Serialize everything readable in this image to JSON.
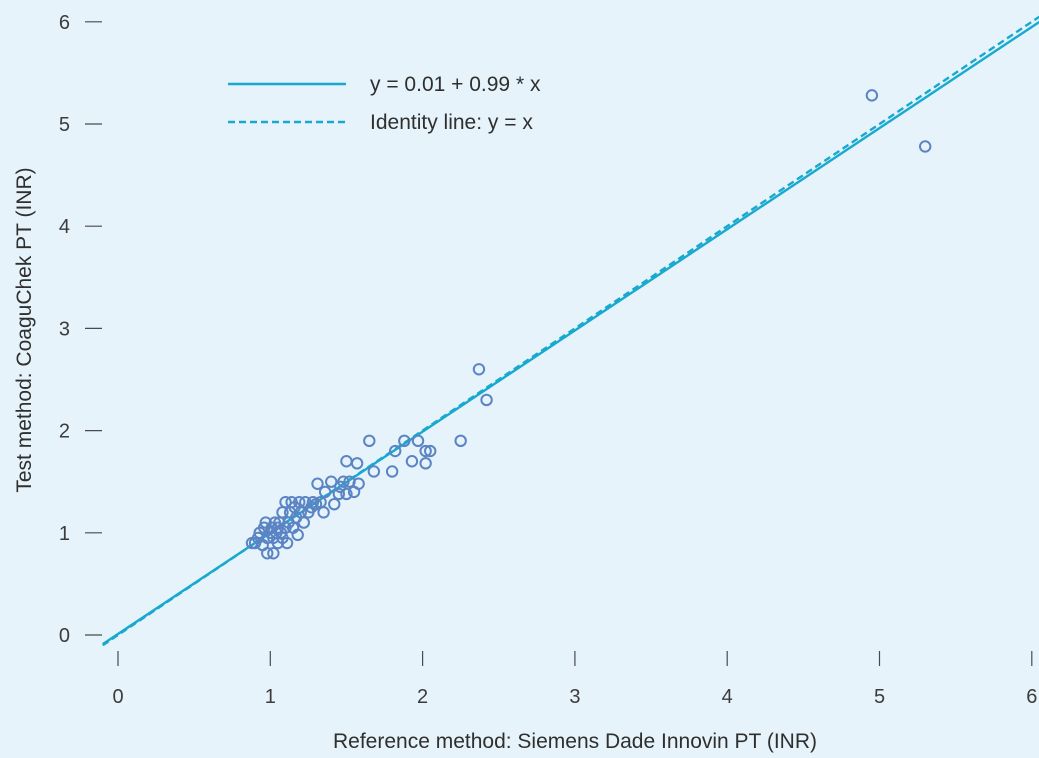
{
  "chart_data": {
    "type": "scatter",
    "title": "",
    "xlabel": "Reference method: Siemens Dade Innovin PT (INR)",
    "ylabel": "Test method: CoaguChek PT (INR)",
    "xlim": [
      -0.1,
      6.05
    ],
    "ylim": [
      -0.1,
      6.1
    ],
    "xticks": [
      "0",
      "1",
      "2",
      "3",
      "4",
      "5",
      "6"
    ],
    "yticks": [
      "0",
      "1",
      "2",
      "3",
      "4",
      "5",
      "6"
    ],
    "grid": false,
    "legend_position": "top-left",
    "colors": {
      "points": "#5b84c4",
      "lines": "#17a9cf",
      "background": "#e6f3fa"
    },
    "series": [
      {
        "name": "",
        "kind": "points",
        "points": [
          [
            0.88,
            0.9
          ],
          [
            0.9,
            0.9
          ],
          [
            0.92,
            0.95
          ],
          [
            0.93,
            1.0
          ],
          [
            0.95,
            0.88
          ],
          [
            0.96,
            1.05
          ],
          [
            0.97,
            1.1
          ],
          [
            0.98,
            0.95
          ],
          [
            0.98,
            0.8
          ],
          [
            1.0,
            1.0
          ],
          [
            1.01,
            1.05
          ],
          [
            1.02,
            0.8
          ],
          [
            1.02,
            0.95
          ],
          [
            1.03,
            1.1
          ],
          [
            1.04,
            1.0
          ],
          [
            1.05,
            0.9
          ],
          [
            1.05,
            1.05
          ],
          [
            1.06,
            1.1
          ],
          [
            1.07,
            1.0
          ],
          [
            1.08,
            1.2
          ],
          [
            1.08,
            0.95
          ],
          [
            1.1,
            1.05
          ],
          [
            1.1,
            1.3
          ],
          [
            1.11,
            0.9
          ],
          [
            1.12,
            1.1
          ],
          [
            1.13,
            1.2
          ],
          [
            1.14,
            1.3
          ],
          [
            1.15,
            1.05
          ],
          [
            1.16,
            1.25
          ],
          [
            1.17,
            1.15
          ],
          [
            1.18,
            0.98
          ],
          [
            1.19,
            1.3
          ],
          [
            1.2,
            1.2
          ],
          [
            1.22,
            1.1
          ],
          [
            1.23,
            1.3
          ],
          [
            1.25,
            1.2
          ],
          [
            1.27,
            1.25
          ],
          [
            1.28,
            1.3
          ],
          [
            1.3,
            1.28
          ],
          [
            1.31,
            1.48
          ],
          [
            1.33,
            1.3
          ],
          [
            1.35,
            1.2
          ],
          [
            1.36,
            1.4
          ],
          [
            1.4,
            1.5
          ],
          [
            1.42,
            1.28
          ],
          [
            1.45,
            1.38
          ],
          [
            1.46,
            1.45
          ],
          [
            1.48,
            1.5
          ],
          [
            1.5,
            1.38
          ],
          [
            1.5,
            1.7
          ],
          [
            1.52,
            1.5
          ],
          [
            1.55,
            1.4
          ],
          [
            1.57,
            1.68
          ],
          [
            1.58,
            1.48
          ],
          [
            1.65,
            1.9
          ],
          [
            1.68,
            1.6
          ],
          [
            1.8,
            1.6
          ],
          [
            1.82,
            1.8
          ],
          [
            1.88,
            1.9
          ],
          [
            1.93,
            1.7
          ],
          [
            1.97,
            1.9
          ],
          [
            2.02,
            1.68
          ],
          [
            2.02,
            1.8
          ],
          [
            2.05,
            1.8
          ],
          [
            2.25,
            1.9
          ],
          [
            2.37,
            2.6
          ],
          [
            2.42,
            2.3
          ],
          [
            4.95,
            5.28
          ],
          [
            5.3,
            4.78
          ]
        ]
      },
      {
        "name": "y = 0.01 + 0.99 * x",
        "kind": "regression",
        "intercept": 0.01,
        "slope": 0.99,
        "dash": "solid"
      },
      {
        "name": "Identity line: y = x",
        "kind": "identity",
        "intercept": 0,
        "slope": 1,
        "dash": "dashed"
      }
    ]
  }
}
